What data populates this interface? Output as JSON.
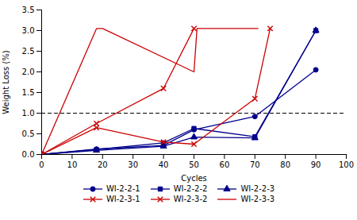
{
  "chart_data": {
    "type": "line",
    "xlabel": "Cycles",
    "ylabel": "Weight Loss (%)",
    "xlim": [
      0,
      100
    ],
    "ylim": [
      0,
      3.5
    ],
    "xticks": [
      0,
      10,
      20,
      30,
      40,
      50,
      60,
      70,
      80,
      90,
      100
    ],
    "yticks": [
      {
        "value": 0,
        "label": "0.0"
      },
      0.5,
      {
        "value": 1,
        "label": "1.0"
      },
      1.5,
      {
        "value": 2,
        "label": "2.0"
      },
      2.5,
      {
        "value": 3,
        "label": "3.0"
      },
      3.5
    ],
    "grid": false,
    "legend": "bottom",
    "reference_lines": [
      {
        "y": 1.0,
        "color": "#000000",
        "line_style": "dashed"
      }
    ],
    "series": [
      {
        "name": "WI-2-2-1",
        "color": "#00008B",
        "marker": "circle",
        "line_style": "solid",
        "x": [
          0,
          18,
          40,
          50,
          70,
          90
        ],
        "values": [
          0.0,
          0.13,
          0.22,
          0.6,
          0.92,
          2.05
        ]
      },
      {
        "name": "WI-2-2-2",
        "color": "#00008B",
        "marker": "square",
        "line_style": "solid",
        "x": [
          0,
          18,
          40,
          50,
          70,
          90
        ],
        "values": [
          0.0,
          0.12,
          0.28,
          0.63,
          0.43,
          3.0
        ]
      },
      {
        "name": "WI-2-2-3",
        "color": "#00008B",
        "marker": "triangle",
        "line_style": "solid",
        "x": [
          0,
          18,
          40,
          50,
          70,
          90
        ],
        "values": [
          0.0,
          0.1,
          0.2,
          0.42,
          0.4,
          3.0
        ]
      },
      {
        "name": "WI-2-3-1",
        "color": "#CC0000",
        "marker": "x",
        "line_style": "solid",
        "x": [
          0,
          18,
          40,
          50
        ],
        "values": [
          0.0,
          0.75,
          1.6,
          3.05
        ]
      },
      {
        "name": "WI-2-3-2",
        "color": "#CC0000",
        "marker": "x",
        "line_style": "solid",
        "x": [
          0,
          18,
          40,
          50,
          70,
          75
        ],
        "values": [
          0.0,
          0.65,
          0.3,
          0.25,
          1.35,
          3.05
        ]
      },
      {
        "name": "WI-2-3-3",
        "color": "#CC0000",
        "marker": "none",
        "line_style": "solid",
        "x": [
          0,
          18,
          20,
          50,
          51,
          70,
          71
        ],
        "values": [
          0.0,
          3.05,
          3.05,
          2.0,
          3.05,
          3.05,
          3.05
        ]
      }
    ]
  }
}
